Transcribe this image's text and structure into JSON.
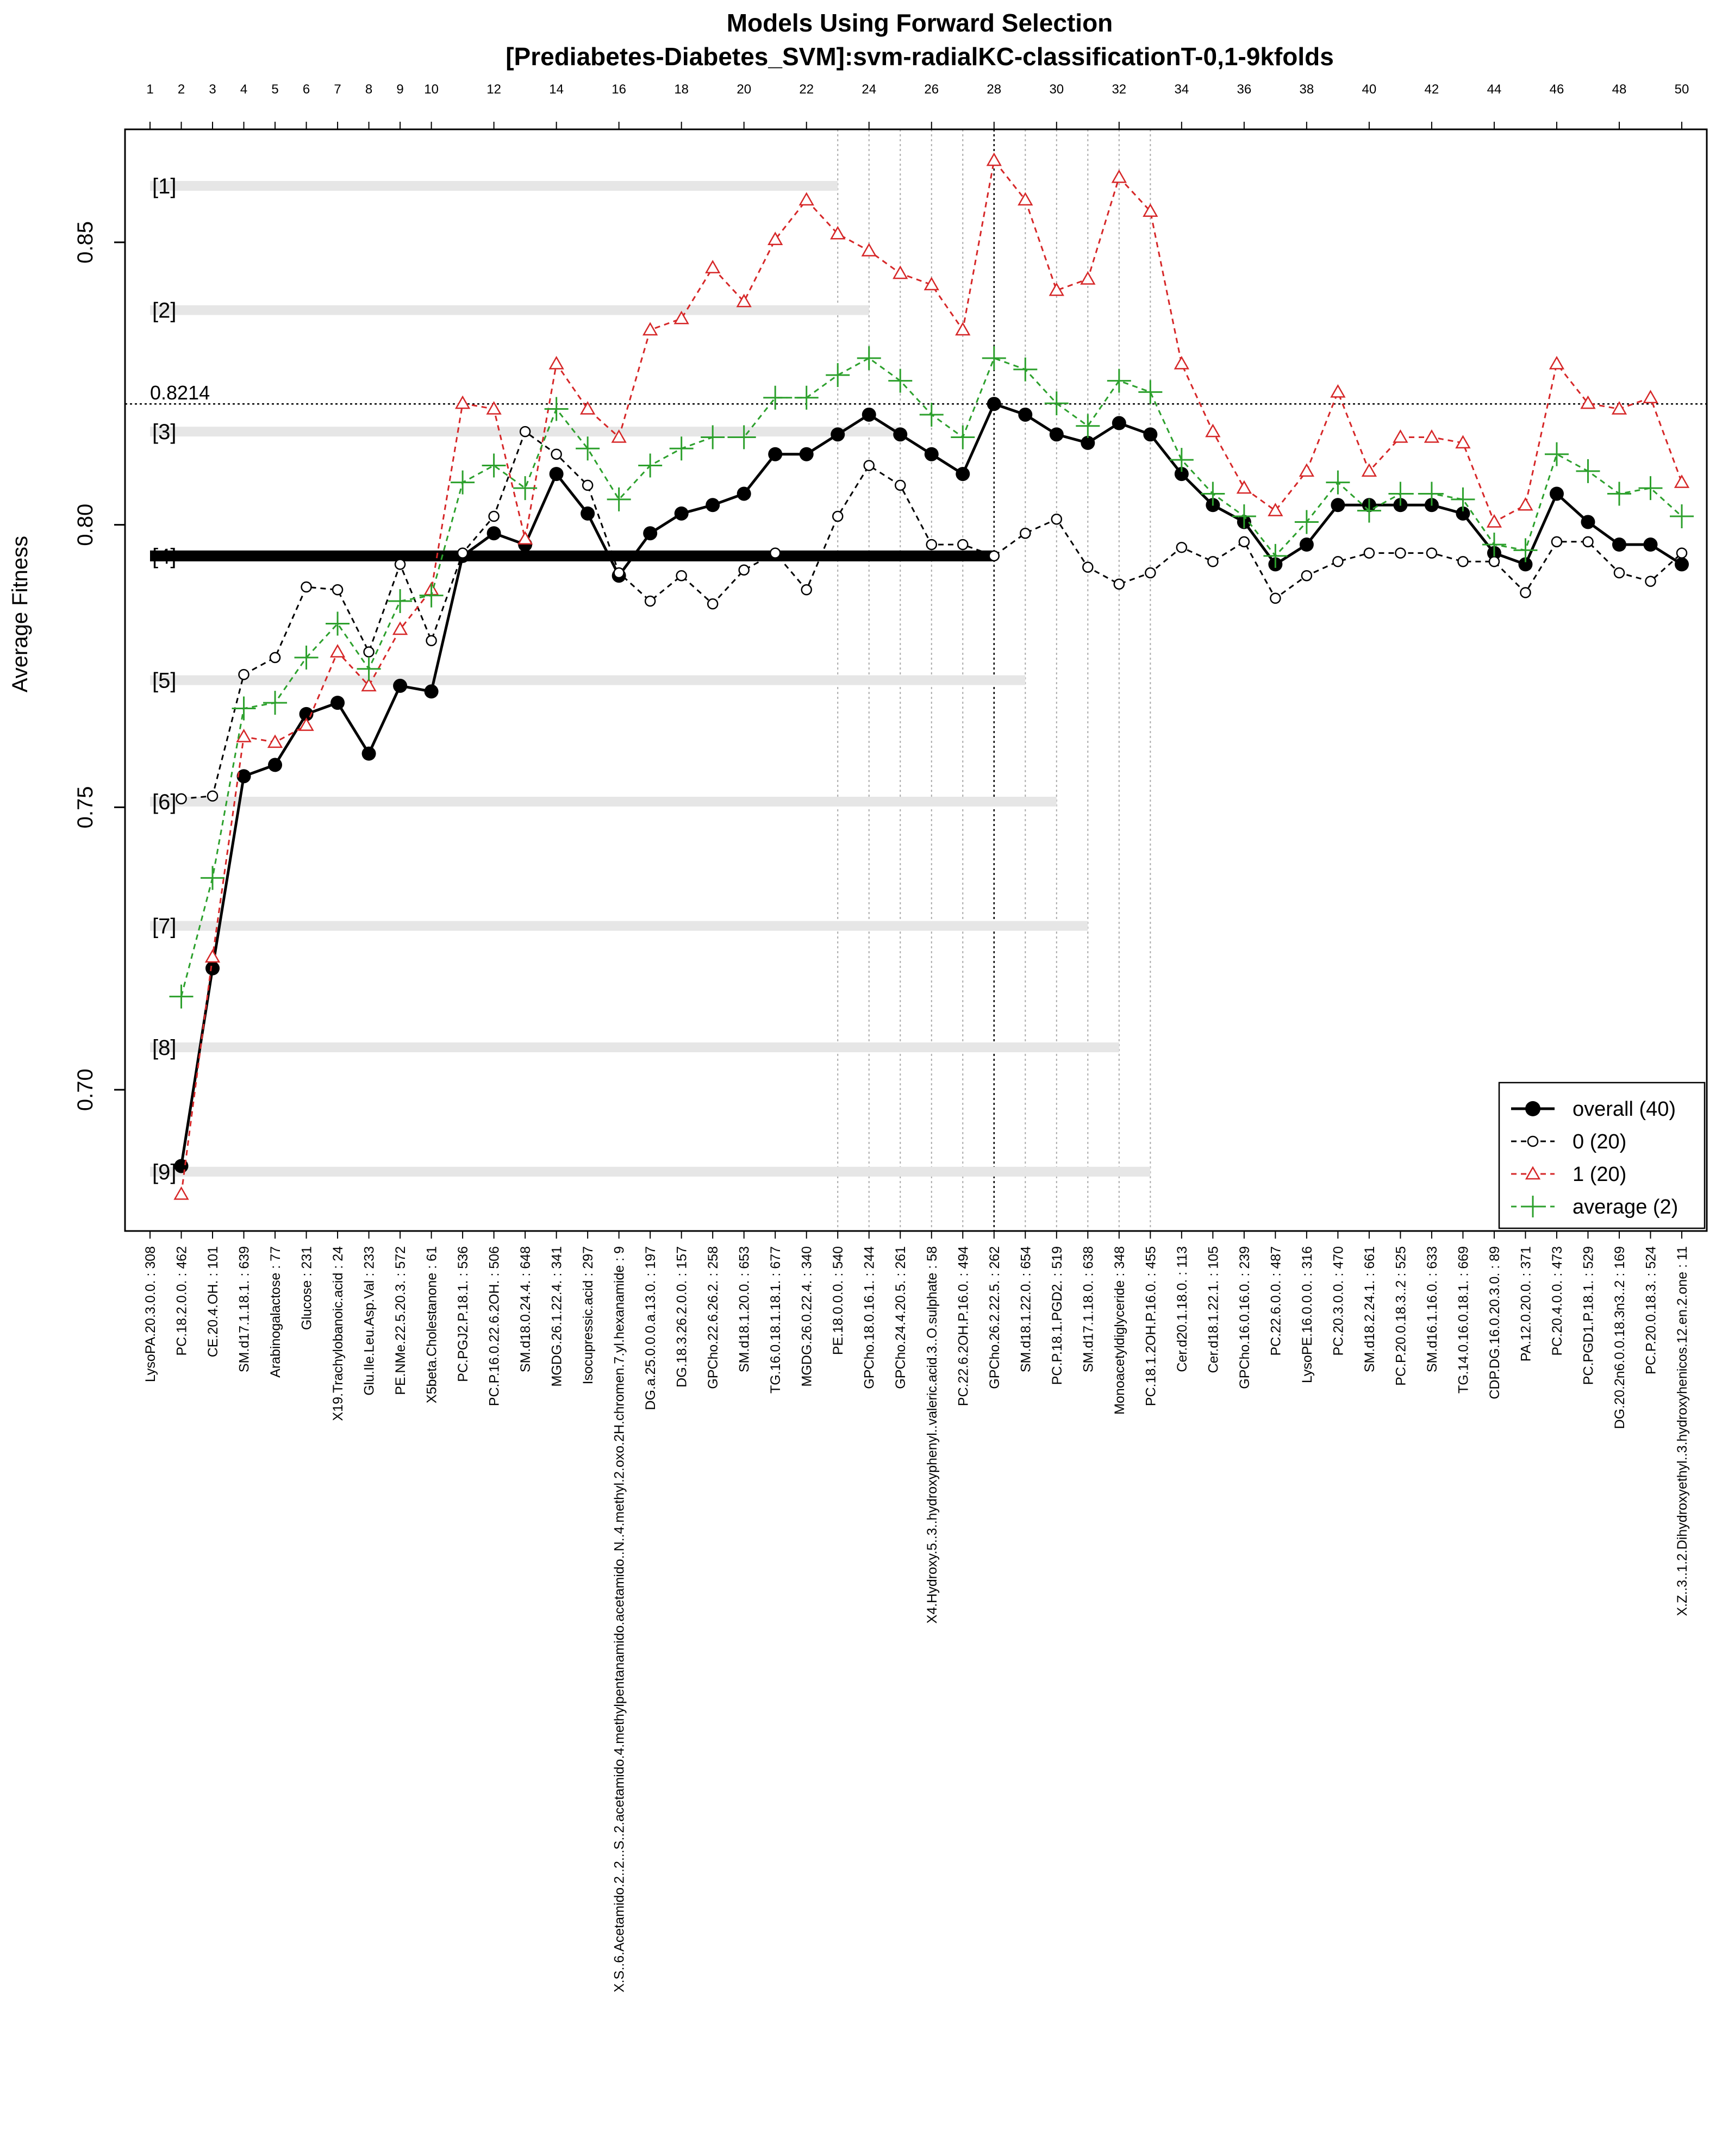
{
  "chart_data": {
    "type": "line",
    "title": "Models Using Forward Selection",
    "subtitle": "[Prediabetes-Diabetes_SVM]:svm-radialKC-classificationT-0,1-9kfolds",
    "xlabel": "",
    "ylabel": "Average Fitness",
    "x": [
      1,
      2,
      3,
      4,
      5,
      6,
      7,
      8,
      9,
      10,
      11,
      12,
      13,
      14,
      15,
      16,
      17,
      18,
      19,
      20,
      21,
      22,
      23,
      24,
      25,
      26,
      27,
      28,
      29,
      30,
      31,
      32,
      33,
      34,
      35,
      36,
      37,
      38,
      39,
      40,
      41,
      42,
      43,
      44,
      45,
      46,
      47,
      48,
      49,
      50
    ],
    "xlim": [
      0.2,
      50.8
    ],
    "ylim": [
      0.675,
      0.87
    ],
    "top_ticks": [
      1,
      2,
      3,
      4,
      5,
      6,
      7,
      8,
      9,
      10,
      12,
      14,
      16,
      18,
      20,
      22,
      24,
      26,
      28,
      30,
      32,
      34,
      36,
      38,
      40,
      42,
      44,
      46,
      48,
      50
    ],
    "y_ticks": [
      {
        "value": 0.7,
        "label": "0.70"
      },
      {
        "value": 0.75,
        "label": "0.75"
      },
      {
        "value": 0.8,
        "label": "0.80"
      },
      {
        "value": 0.85,
        "label": "0.85"
      }
    ],
    "features": [
      "LysoPA.20.3.0.0. : 308",
      "PC.18.2.0.0. : 462",
      "CE.20.4.OH. : 101",
      "SM.d17.1.18.1. : 639",
      "Arabinogalactose : 77",
      "Glucose : 231",
      "X19.Trachylobanoic.acid : 24",
      "Glu.Ile.Leu.Asp.Val : 233",
      "PE.NMe.22.5.20.3. : 572",
      "X5beta.Cholestanone : 61",
      "PC.PGJ2.P.18.1. : 536",
      "PC.P.16.0.22.6.2OH. : 506",
      "SM.d18.0.24.4. : 648",
      "MGDG.26.1.22.4. : 341",
      "Isocupressic.acid : 297",
      "X.S..6.Acetamido.2..2...S..2.acetamido.4.methylpentanamido.acetamido..N..4.methyl.2.oxo.2H.chromen.7.yl.hexanamide : 9",
      "DG.a.25.0.0.0.a.13.0. : 197",
      "DG.18.3.26.2.0.0. : 157",
      "GPCho.22.6.26.2. : 258",
      "SM.d18.1.20.0. : 653",
      "TG.16.0.18.1.18.1. : 677",
      "MGDG.26.0.22.4. : 340",
      "PE.18.0.0.0. : 540",
      "GPCho.18.0.16.1. : 244",
      "GPCho.24.4.20.5. : 261",
      "X4.Hydroxy.5..3..hydroxyphenyl..valeric.acid.3..O.sulphate : 58",
      "PC.22.6.2OH.P.16.0. : 494",
      "GPCho.26.2.22.5. : 262",
      "SM.d18.1.22.0. : 654",
      "PC.P.18.1.PGD2. : 519",
      "SM.d17.1.18.0. : 638",
      "Monoacetyldiglyceride : 348",
      "PC.18.1.2OH.P.16.0. : 455",
      "Cer.d20.1.18.0. : 113",
      "Cer.d18.1.22.1. : 105",
      "GPCho.16.0.16.0. : 239",
      "PC.22.6.0.0. : 487",
      "LysoPE.16.0.0.0. : 316",
      "PC.20.3.0.0. : 470",
      "SM.d18.2.24.1. : 661",
      "PC.P.20.0.18.3..2 : 525",
      "SM.d16.1.16.0. : 633",
      "TG.14.0.16.0.18.1. : 669",
      "CDP.DG.16.0.20.3.0. : 89",
      "PA.12.0.20.0. : 371",
      "PC.20.4.0.0. : 473",
      "PC.PGD1.P.18.1. : 529",
      "DG.20.2n6.0.0.18.3n3..2 : 169",
      "PC.P.20.0.18.3. : 524",
      "X.Z..3..1.2.Dihydroxyethyl..3.hydroxyhenicos.12.en.2.one : 11"
    ],
    "series": [
      {
        "name": "overall",
        "legend": "overall (40)",
        "color": "#000000",
        "dash": "",
        "marker": "filled-circle",
        "width": 5,
        "values": [
          null,
          0.6865,
          0.7215,
          0.7555,
          0.7575,
          0.7665,
          0.7685,
          0.7595,
          0.7715,
          0.7705,
          0.7945,
          0.7985,
          0.7965,
          0.809,
          0.802,
          0.791,
          0.7985,
          0.802,
          0.8035,
          0.8055,
          0.8125,
          0.8125,
          0.816,
          0.8195,
          0.816,
          0.8125,
          0.809,
          0.8214,
          0.8195,
          0.816,
          0.8145,
          0.818,
          0.816,
          0.809,
          0.8035,
          0.8005,
          0.793,
          0.7965,
          0.8035,
          0.8035,
          0.8035,
          0.8035,
          0.802,
          0.795,
          0.793,
          0.8055,
          0.8005,
          0.7965,
          0.7965,
          0.793
        ]
      },
      {
        "name": "0",
        "legend": "0 (20)",
        "color": "#000000",
        "dash": "10,8",
        "marker": "open-circle",
        "width": 3,
        "values": [
          null,
          0.7515,
          0.752,
          0.7735,
          0.7765,
          0.789,
          0.7885,
          0.7775,
          0.793,
          0.7795,
          0.795,
          0.8015,
          0.8165,
          0.8125,
          0.807,
          0.7915,
          0.7865,
          0.791,
          0.786,
          0.792,
          0.795,
          0.7885,
          0.8015,
          0.8105,
          0.807,
          0.7965,
          0.7965,
          0.7945,
          0.7985,
          0.801,
          0.7925,
          0.7895,
          0.7915,
          0.796,
          0.7935,
          0.797,
          0.787,
          0.791,
          0.7935,
          0.795,
          0.795,
          0.795,
          0.7935,
          0.7935,
          0.788,
          0.797,
          0.797,
          0.7915,
          0.79,
          0.795
        ]
      },
      {
        "name": "1",
        "legend": "1 (20)",
        "color": "#d62728",
        "dash": "10,8",
        "marker": "open-triangle",
        "width": 3,
        "values": [
          null,
          0.6815,
          0.7235,
          0.7625,
          0.7615,
          0.7645,
          0.7775,
          0.7715,
          0.7815,
          0.7885,
          0.8215,
          0.8205,
          0.7975,
          0.8285,
          0.8205,
          0.8155,
          0.8345,
          0.8365,
          0.8455,
          0.8395,
          0.8505,
          0.8575,
          0.8515,
          0.8485,
          0.8445,
          0.8425,
          0.8345,
          0.8645,
          0.8575,
          0.8415,
          0.8435,
          0.8615,
          0.8555,
          0.8285,
          0.8165,
          0.8065,
          0.8025,
          0.8095,
          0.8235,
          0.8095,
          0.8155,
          0.8155,
          0.8145,
          0.8005,
          0.8035,
          0.8285,
          0.8215,
          0.8205,
          0.8225,
          0.8075
        ]
      },
      {
        "name": "average",
        "legend": "average (2)",
        "color": "#2ca02c",
        "dash": "10,8",
        "marker": "plus",
        "width": 3,
        "values": [
          null,
          0.7165,
          0.7375,
          0.7675,
          0.7685,
          0.7765,
          0.7825,
          0.7745,
          0.7865,
          0.7875,
          0.8075,
          0.8105,
          0.8065,
          0.8205,
          0.8135,
          0.8045,
          0.8105,
          0.8135,
          0.8155,
          0.8155,
          0.8225,
          0.8225,
          0.8265,
          0.8295,
          0.8255,
          0.8195,
          0.8155,
          0.8295,
          0.8275,
          0.8215,
          0.8175,
          0.8255,
          0.8235,
          0.8115,
          0.8055,
          0.8015,
          0.7945,
          0.8005,
          0.8075,
          0.8025,
          0.8055,
          0.8055,
          0.8045,
          0.7965,
          0.7955,
          0.8125,
          0.8095,
          0.8055,
          0.8065,
          0.8015
        ]
      }
    ],
    "reference_line": {
      "value": 0.8214,
      "label": "0.8214"
    },
    "best_x": 28,
    "selected_vlines": [
      23,
      24,
      25,
      26,
      27,
      29,
      30,
      31,
      32,
      33
    ],
    "folds": [
      {
        "label": "[1]",
        "y": 0.86,
        "end_x": 23
      },
      {
        "label": "[2]",
        "y": 0.838,
        "end_x": 24
      },
      {
        "label": "[3]",
        "y": 0.8165,
        "end_x": 25
      },
      {
        "label": "[4]",
        "y": 0.7945,
        "end_x": 28,
        "highlight": true
      },
      {
        "label": "[5]",
        "y": 0.7725,
        "end_x": 29
      },
      {
        "label": "[6]",
        "y": 0.751,
        "end_x": 30
      },
      {
        "label": "[7]",
        "y": 0.729,
        "end_x": 31
      },
      {
        "label": "[8]",
        "y": 0.7075,
        "end_x": 32
      },
      {
        "label": "[9]",
        "y": 0.6855,
        "end_x": 33
      }
    ],
    "legend_position": "bottom-right"
  }
}
